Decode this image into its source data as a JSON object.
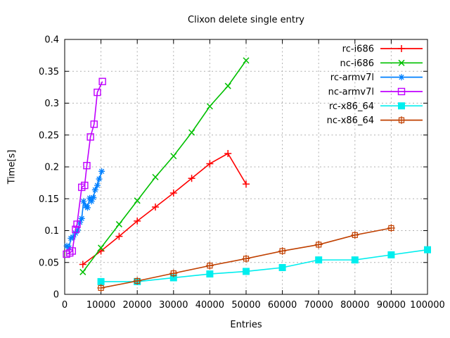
{
  "chart_data": {
    "type": "line",
    "title": "Clixon delete single entry",
    "xlabel": "Entries",
    "ylabel": "Time[s]",
    "xlim": [
      0,
      100000
    ],
    "ylim": [
      0,
      0.4
    ],
    "x_ticks": [
      0,
      10000,
      20000,
      30000,
      40000,
      50000,
      60000,
      70000,
      80000,
      90000,
      100000
    ],
    "x_tick_labels": [
      "0",
      "10000",
      "20000",
      "30000",
      "40000",
      "50000",
      "60000",
      "70000",
      "80000",
      "90000",
      "100000"
    ],
    "y_ticks": [
      0,
      0.05,
      0.1,
      0.15,
      0.2,
      0.25,
      0.3,
      0.35,
      0.4
    ],
    "y_tick_labels": [
      "0",
      "0.05",
      "0.1",
      "0.15",
      "0.2",
      "0.25",
      "0.3",
      "0.35",
      "0.4"
    ],
    "grid": true,
    "legend_position": "top-right-inside",
    "background": "#ffffff",
    "frame_color": "#000000",
    "grid_color": "#b0b0b0",
    "series": [
      {
        "name": "rc-i686",
        "color": "#ff0000",
        "marker": "plus",
        "x": [
          5000,
          10000,
          15000,
          20000,
          25000,
          30000,
          35000,
          40000,
          45000,
          50000
        ],
        "y": [
          0.047,
          0.068,
          0.091,
          0.115,
          0.137,
          0.159,
          0.182,
          0.205,
          0.221,
          0.173
        ]
      },
      {
        "name": "nc-i686",
        "color": "#00c000",
        "marker": "cross",
        "x": [
          5000,
          10000,
          15000,
          20000,
          25000,
          30000,
          35000,
          40000,
          45000,
          50000
        ],
        "y": [
          0.035,
          0.073,
          0.11,
          0.147,
          0.184,
          0.217,
          0.254,
          0.295,
          0.327,
          0.367
        ]
      },
      {
        "name": "rc-armv7l",
        "color": "#0080ff",
        "marker": "asterisk",
        "x": [
          600,
          1200,
          1700,
          2300,
          3000,
          3600,
          4200,
          4700,
          5200,
          5800,
          6300,
          6900,
          7400,
          7900,
          8400,
          9000,
          9500,
          10200
        ],
        "y": [
          0.076,
          0.073,
          0.088,
          0.09,
          0.096,
          0.101,
          0.113,
          0.119,
          0.146,
          0.139,
          0.136,
          0.151,
          0.146,
          0.152,
          0.164,
          0.171,
          0.181,
          0.193
        ]
      },
      {
        "name": "nc-armv7l",
        "color": "#c000ff",
        "marker": "square-open",
        "x": [
          500,
          1400,
          2100,
          3000,
          3400,
          4700,
          5500,
          6100,
          7100,
          8100,
          9000,
          10400
        ],
        "y": [
          0.063,
          0.065,
          0.068,
          0.102,
          0.11,
          0.168,
          0.171,
          0.202,
          0.247,
          0.267,
          0.317,
          0.334
        ]
      },
      {
        "name": "rc-x86_64",
        "color": "#00eeee",
        "marker": "square-filled",
        "x": [
          10000,
          20000,
          30000,
          40000,
          50000,
          60000,
          70000,
          80000,
          90000,
          100000
        ],
        "y": [
          0.02,
          0.02,
          0.026,
          0.032,
          0.036,
          0.042,
          0.054,
          0.054,
          0.062,
          0.07
        ]
      },
      {
        "name": "nc-x86_64",
        "color": "#c04000",
        "marker": "square-plus",
        "x": [
          10000,
          20000,
          30000,
          40000,
          50000,
          60000,
          70000,
          80000,
          90000
        ],
        "y": [
          0.01,
          0.021,
          0.033,
          0.045,
          0.056,
          0.068,
          0.078,
          0.093,
          0.104
        ]
      }
    ]
  }
}
